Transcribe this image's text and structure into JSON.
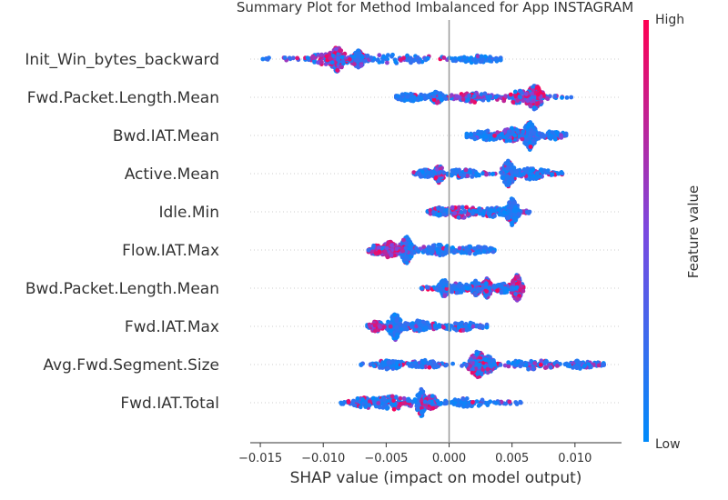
{
  "chart_data": {
    "type": "scatter",
    "title": "Summary Plot for Method Imbalanced for App INSTAGRAM",
    "xlabel": "SHAP value (impact on model output)",
    "ylabel": "",
    "xlim": [
      -0.0158,
      0.0137
    ],
    "xticks": [
      {
        "value": -0.015,
        "label": "−0.015"
      },
      {
        "value": -0.01,
        "label": "−0.010"
      },
      {
        "value": -0.005,
        "label": "−0.005"
      },
      {
        "value": 0.0,
        "label": "0.000"
      },
      {
        "value": 0.005,
        "label": "0.005"
      },
      {
        "value": 0.01,
        "label": "0.010"
      }
    ],
    "zero_line": 0,
    "colorbar": {
      "title": "Feature value",
      "high_label": "High",
      "low_label": "Low",
      "low_color": "#008bfb",
      "high_color": "#ff0052"
    },
    "features": [
      {
        "name": "Init_Win_bytes_backward",
        "min": -0.0148,
        "max": 0.0041,
        "clusters": [
          {
            "x": -0.0089,
            "spread": 0.00035,
            "height": 0.85,
            "low": 0.3
          },
          {
            "x": -0.0072,
            "spread": 0.0003,
            "height": 0.5,
            "low": 0.7
          },
          {
            "x": -0.0098,
            "spread": 0.0009,
            "height": 0.25,
            "low": 0.4
          },
          {
            "x": -0.0045,
            "spread": 0.0025,
            "height": 0.15,
            "low": 0.8
          },
          {
            "x": 0.002,
            "spread": 0.0012,
            "height": 0.1,
            "low": 0.95
          }
        ]
      },
      {
        "name": "Fwd.Packet.Length.Mean",
        "min": -0.0042,
        "max": 0.0097,
        "clusters": [
          {
            "x": 0.0068,
            "spread": 0.0003,
            "height": 0.95,
            "low": 0.3
          },
          {
            "x": 0.0058,
            "spread": 0.0011,
            "height": 0.35,
            "low": 0.2
          },
          {
            "x": -0.001,
            "spread": 0.0003,
            "height": 0.3,
            "low": 0.9
          },
          {
            "x": -0.003,
            "spread": 0.0008,
            "height": 0.15,
            "low": 0.95
          },
          {
            "x": 0.002,
            "spread": 0.001,
            "height": 0.2,
            "low": 0.3
          }
        ]
      },
      {
        "name": "Bwd.IAT.Mean",
        "min": 0.0014,
        "max": 0.0093,
        "clusters": [
          {
            "x": 0.0064,
            "spread": 0.00025,
            "height": 1.0,
            "low": 0.95
          },
          {
            "x": 0.005,
            "spread": 0.0006,
            "height": 0.4,
            "low": 0.5
          },
          {
            "x": 0.003,
            "spread": 0.0009,
            "height": 0.2,
            "low": 0.9
          },
          {
            "x": 0.0082,
            "spread": 0.0006,
            "height": 0.15,
            "low": 0.9
          }
        ]
      },
      {
        "name": "Active.Mean",
        "min": -0.0028,
        "max": 0.009,
        "clusters": [
          {
            "x": 0.0047,
            "spread": 0.00025,
            "height": 0.9,
            "low": 0.9
          },
          {
            "x": -0.0008,
            "spread": 0.0002,
            "height": 0.55,
            "low": 0.4
          },
          {
            "x": 0.0066,
            "spread": 0.0008,
            "height": 0.3,
            "low": 0.85
          },
          {
            "x": 0.001,
            "spread": 0.0007,
            "height": 0.2,
            "low": 0.9
          },
          {
            "x": -0.002,
            "spread": 0.0004,
            "height": 0.15,
            "low": 0.9
          }
        ]
      },
      {
        "name": "Idle.Min",
        "min": -0.0017,
        "max": 0.0064,
        "clusters": [
          {
            "x": 0.005,
            "spread": 0.00025,
            "height": 0.95,
            "low": 0.95
          },
          {
            "x": 0.001,
            "spread": 0.0009,
            "height": 0.3,
            "low": 0.3
          },
          {
            "x": 0.0035,
            "spread": 0.0009,
            "height": 0.2,
            "low": 0.9
          },
          {
            "x": -0.0008,
            "spread": 0.0004,
            "height": 0.15,
            "low": 0.8
          }
        ]
      },
      {
        "name": "Flow.IAT.Max",
        "min": -0.0064,
        "max": 0.0036,
        "clusters": [
          {
            "x": -0.0034,
            "spread": 0.00025,
            "height": 0.95,
            "low": 0.85
          },
          {
            "x": -0.0047,
            "spread": 0.0004,
            "height": 0.5,
            "low": 0.1
          },
          {
            "x": -0.0058,
            "spread": 0.0004,
            "height": 0.2,
            "low": 0.3
          },
          {
            "x": -0.0008,
            "spread": 0.0008,
            "height": 0.25,
            "low": 0.9
          },
          {
            "x": 0.002,
            "spread": 0.0009,
            "height": 0.12,
            "low": 0.95
          }
        ]
      },
      {
        "name": "Bwd.Packet.Length.Mean",
        "min": -0.0022,
        "max": 0.0059,
        "clusters": [
          {
            "x": 0.0054,
            "spread": 0.0002,
            "height": 0.95,
            "low": 0.2
          },
          {
            "x": 0.003,
            "spread": 0.0002,
            "height": 0.6,
            "low": 0.4
          },
          {
            "x": 0.0021,
            "spread": 0.0002,
            "height": 0.45,
            "low": 0.85
          },
          {
            "x": -0.0004,
            "spread": 0.0002,
            "height": 0.55,
            "low": 0.95
          },
          {
            "x": 0.0008,
            "spread": 0.0006,
            "height": 0.25,
            "low": 0.9
          },
          {
            "x": 0.0043,
            "spread": 0.0004,
            "height": 0.2,
            "low": 0.8
          }
        ]
      },
      {
        "name": "Fwd.IAT.Max",
        "min": -0.0065,
        "max": 0.003,
        "clusters": [
          {
            "x": -0.0043,
            "spread": 0.00025,
            "height": 0.95,
            "low": 0.9
          },
          {
            "x": -0.0058,
            "spread": 0.0003,
            "height": 0.25,
            "low": 0.1
          },
          {
            "x": -0.0025,
            "spread": 0.0009,
            "height": 0.25,
            "low": 0.85
          },
          {
            "x": 0.001,
            "spread": 0.0011,
            "height": 0.15,
            "low": 0.9
          }
        ]
      },
      {
        "name": "Avg.Fwd.Segment.Size",
        "min": -0.007,
        "max": 0.0123,
        "clusters": [
          {
            "x": 0.0023,
            "spread": 0.00035,
            "height": 0.95,
            "low": 0.4
          },
          {
            "x": 0.0031,
            "spread": 0.0003,
            "height": 0.5,
            "low": 0.5
          },
          {
            "x": -0.0048,
            "spread": 0.0006,
            "height": 0.25,
            "low": 0.9
          },
          {
            "x": 0.0065,
            "spread": 0.0012,
            "height": 0.2,
            "low": 0.6
          },
          {
            "x": 0.0105,
            "spread": 0.0009,
            "height": 0.12,
            "low": 0.7
          },
          {
            "x": -0.002,
            "spread": 0.0007,
            "height": 0.15,
            "low": 0.9
          }
        ]
      },
      {
        "name": "Fwd.IAT.Total",
        "min": -0.0086,
        "max": 0.0057,
        "clusters": [
          {
            "x": -0.0022,
            "spread": 0.0002,
            "height": 0.95,
            "low": 0.8
          },
          {
            "x": -0.0014,
            "spread": 0.0003,
            "height": 0.4,
            "low": 0.1
          },
          {
            "x": -0.0045,
            "spread": 0.001,
            "height": 0.35,
            "low": 0.65
          },
          {
            "x": -0.0065,
            "spread": 0.0009,
            "height": 0.25,
            "low": 0.7
          },
          {
            "x": 0.0012,
            "spread": 0.0012,
            "height": 0.15,
            "low": 0.9
          }
        ]
      }
    ]
  }
}
